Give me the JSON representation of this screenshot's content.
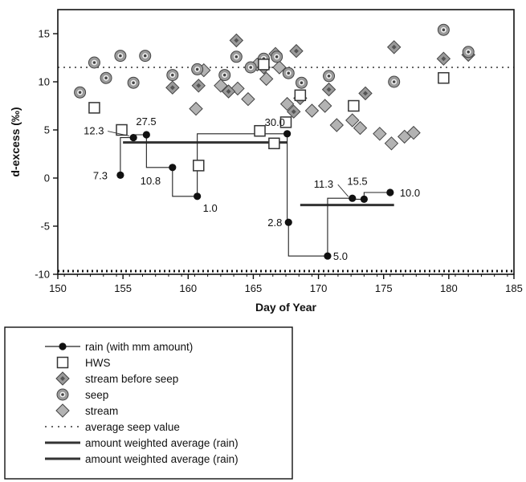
{
  "chart_data": {
    "type": "scatter",
    "xlabel": "Day of Year",
    "ylabel": "d-excess (‰)",
    "xlim": [
      150,
      185
    ],
    "ylim": [
      -10,
      17.5
    ],
    "xticks": [
      150,
      155,
      160,
      165,
      170,
      175,
      180,
      185
    ],
    "yticks": [
      -10,
      -5,
      0,
      5,
      10,
      15
    ],
    "colors": {
      "diamond_fill": "#b3b3b3",
      "diamond_dark": "#555555",
      "circle_fill": "#9a9a9a",
      "rain": "#111111",
      "average_line": "#333333"
    },
    "series": [
      {
        "name": "rain (with mm amount)",
        "marker": "filled-circle",
        "connected_as_step": true,
        "points": [
          {
            "x": 154.8,
            "y": 0.3,
            "label": "7.3"
          },
          {
            "x": 155.8,
            "y": 4.2,
            "label": "12.3"
          },
          {
            "x": 156.8,
            "y": 4.5,
            "label": "27.5"
          },
          {
            "x": 158.8,
            "y": 1.1,
            "label": "10.8"
          },
          {
            "x": 160.7,
            "y": -1.9,
            "label": "1.0"
          },
          {
            "x": 167.6,
            "y": 4.6,
            "label": "30.0"
          },
          {
            "x": 167.7,
            "y": -4.6,
            "label": "2.8"
          },
          {
            "x": 170.7,
            "y": -8.1,
            "label": "5.0"
          },
          {
            "x": 172.6,
            "y": -2.1,
            "label": "11.3"
          },
          {
            "x": 173.5,
            "y": -2.2,
            "label": "15.5"
          },
          {
            "x": 175.5,
            "y": -1.5,
            "label": "10.0"
          }
        ]
      },
      {
        "name": "HWS",
        "marker": "open-square",
        "points": [
          {
            "x": 152.8,
            "y": 7.3
          },
          {
            "x": 154.9,
            "y": 5.0
          },
          {
            "x": 160.8,
            "y": 1.3
          },
          {
            "x": 165.5,
            "y": 4.9
          },
          {
            "x": 166.6,
            "y": 3.6
          },
          {
            "x": 167.5,
            "y": 5.8
          },
          {
            "x": 168.6,
            "y": 8.6
          },
          {
            "x": 172.7,
            "y": 7.5
          },
          {
            "x": 179.6,
            "y": 10.4
          },
          {
            "x": 165.8,
            "y": 11.8
          }
        ]
      },
      {
        "name": "stream before seep",
        "marker": "dark-diamond",
        "points": [
          {
            "x": 158.8,
            "y": 9.4
          },
          {
            "x": 160.8,
            "y": 9.6
          },
          {
            "x": 163.1,
            "y": 9.0
          },
          {
            "x": 163.7,
            "y": 14.3
          },
          {
            "x": 165.8,
            "y": 11.5
          },
          {
            "x": 166.7,
            "y": 12.9
          },
          {
            "x": 168.3,
            "y": 13.2
          },
          {
            "x": 168.1,
            "y": 6.9
          },
          {
            "x": 168.6,
            "y": 8.3
          },
          {
            "x": 170.8,
            "y": 9.2
          },
          {
            "x": 173.6,
            "y": 8.8
          },
          {
            "x": 175.8,
            "y": 13.6
          },
          {
            "x": 179.6,
            "y": 12.4
          },
          {
            "x": 181.5,
            "y": 12.8
          }
        ]
      },
      {
        "name": "seep",
        "marker": "bullseye-circle",
        "points": [
          {
            "x": 151.7,
            "y": 8.9
          },
          {
            "x": 152.8,
            "y": 12.0
          },
          {
            "x": 153.7,
            "y": 10.4
          },
          {
            "x": 154.8,
            "y": 12.7
          },
          {
            "x": 155.8,
            "y": 9.9
          },
          {
            "x": 156.7,
            "y": 12.7
          },
          {
            "x": 158.8,
            "y": 10.7
          },
          {
            "x": 160.7,
            "y": 11.3
          },
          {
            "x": 162.8,
            "y": 10.7
          },
          {
            "x": 163.7,
            "y": 12.6
          },
          {
            "x": 164.8,
            "y": 11.5
          },
          {
            "x": 165.8,
            "y": 12.4
          },
          {
            "x": 166.8,
            "y": 12.6
          },
          {
            "x": 167.7,
            "y": 10.9
          },
          {
            "x": 168.7,
            "y": 9.9
          },
          {
            "x": 170.8,
            "y": 10.6
          },
          {
            "x": 175.8,
            "y": 10.0
          },
          {
            "x": 179.6,
            "y": 15.4
          },
          {
            "x": 181.5,
            "y": 13.1
          }
        ]
      },
      {
        "name": "stream",
        "marker": "light-diamond",
        "points": [
          {
            "x": 160.6,
            "y": 7.2
          },
          {
            "x": 161.2,
            "y": 11.2
          },
          {
            "x": 162.5,
            "y": 9.6
          },
          {
            "x": 163.8,
            "y": 9.3
          },
          {
            "x": 164.6,
            "y": 8.2
          },
          {
            "x": 165.3,
            "y": 11.8
          },
          {
            "x": 166.0,
            "y": 10.3
          },
          {
            "x": 167.0,
            "y": 11.5
          },
          {
            "x": 167.6,
            "y": 7.7
          },
          {
            "x": 169.5,
            "y": 7.0
          },
          {
            "x": 170.5,
            "y": 7.5
          },
          {
            "x": 171.4,
            "y": 5.5
          },
          {
            "x": 172.6,
            "y": 6.0
          },
          {
            "x": 173.2,
            "y": 5.2
          },
          {
            "x": 174.7,
            "y": 4.6
          },
          {
            "x": 175.6,
            "y": 3.6
          },
          {
            "x": 176.6,
            "y": 4.3
          },
          {
            "x": 177.3,
            "y": 4.7
          }
        ]
      }
    ],
    "average_seep_value": 11.5,
    "weighted_averages": [
      {
        "name": "amount weighted average (rain)",
        "x_start": 155.0,
        "x_end": 167.6,
        "y": 3.7
      },
      {
        "name": "amount weighted average (rain)",
        "x_start": 168.6,
        "x_end": 175.8,
        "y": -2.8
      }
    ],
    "legend": {
      "position": "below",
      "entries": [
        {
          "label": "rain (with mm amount)",
          "symbol": "line-dot"
        },
        {
          "label": "HWS",
          "symbol": "open-square"
        },
        {
          "label": "stream before seep",
          "symbol": "dark-diamond"
        },
        {
          "label": "seep",
          "symbol": "bullseye-circle"
        },
        {
          "label": "stream",
          "symbol": "light-diamond"
        },
        {
          "label": "average seep value",
          "symbol": "dotted-line"
        },
        {
          "label": "amount weighted average (rain)",
          "symbol": "thick-line"
        },
        {
          "label": "amount weighted average (rain)",
          "symbol": "thick-line"
        }
      ]
    }
  }
}
